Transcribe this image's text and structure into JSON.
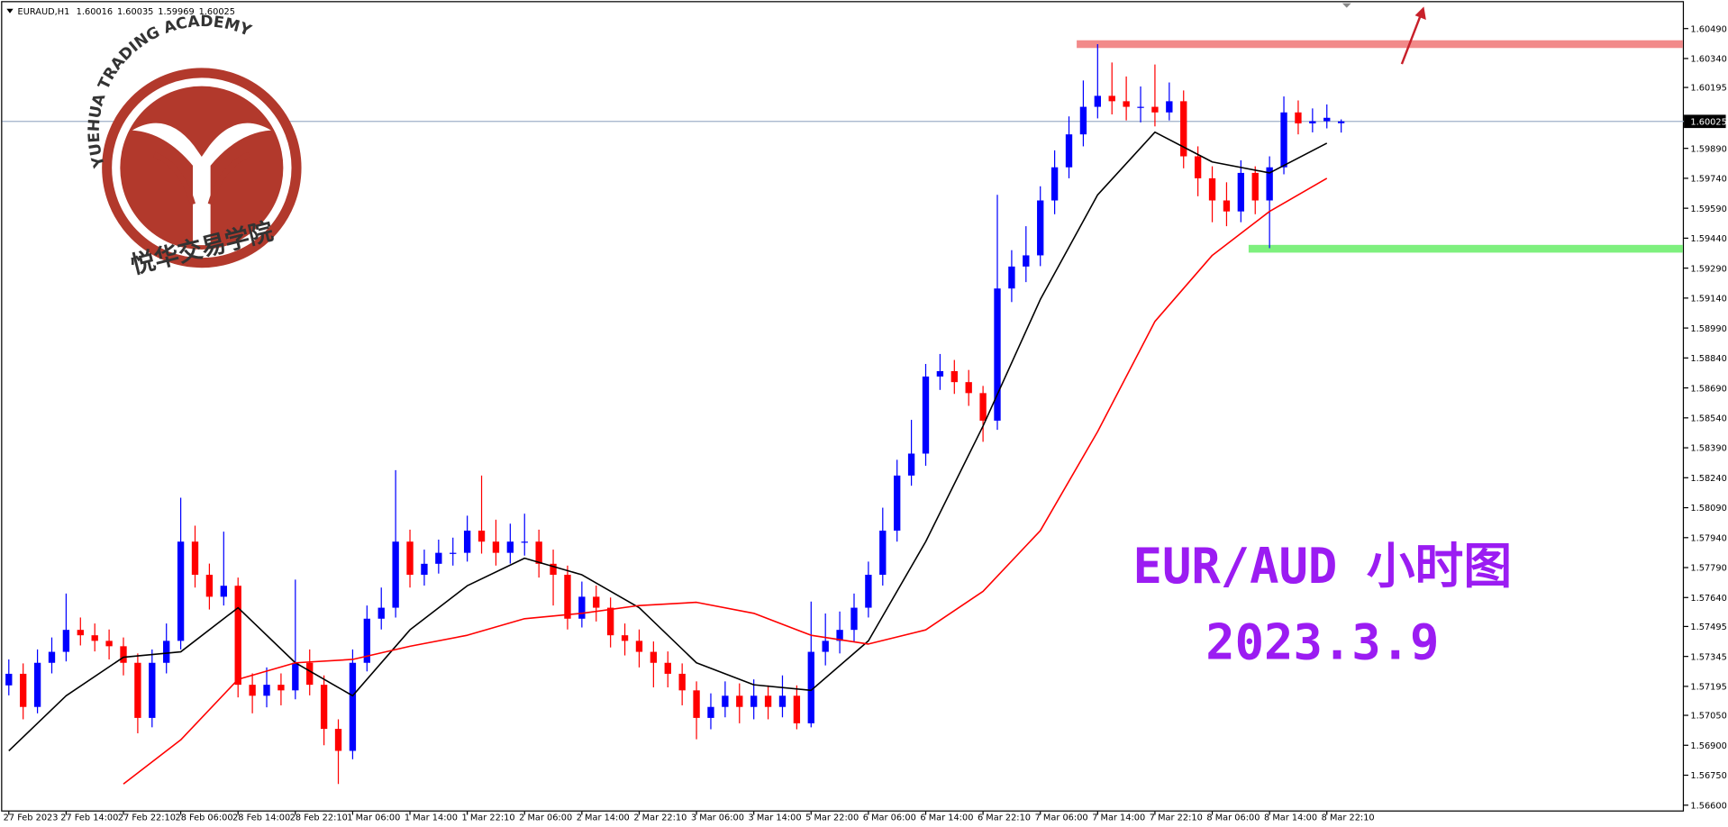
{
  "chart_data": {
    "type": "candlestick",
    "symbol": "EURAUD,H1",
    "ohlc": [
      1.60016,
      1.60035,
      1.59969,
      1.60025
    ],
    "annotation": "EUR/AUD 小时图",
    "date_note": "2023.3.9",
    "logo_text": "YUEHUA TRADING ACADEMY",
    "logo_cn": "悦华交易学院",
    "up_color": "#0000ff",
    "down_color": "#ff0000",
    "ylim": [
      1.56568,
      1.60622
    ],
    "yticks": [
      {
        "value": 1.6049,
        "label": "1.60490"
      },
      {
        "value": 1.6034,
        "label": "1.60340"
      },
      1.60195,
      {
        "value": 1.5989,
        "label": "1.59890"
      },
      {
        "value": 1.5974,
        "label": "1.59740"
      },
      {
        "value": 1.5959,
        "label": "1.59590"
      },
      {
        "value": 1.5944,
        "label": "1.59440"
      },
      {
        "value": 1.5929,
        "label": "1.59290"
      },
      {
        "value": 1.5914,
        "label": "1.59140"
      },
      {
        "value": 1.5899,
        "label": "1.58990"
      },
      {
        "value": 1.5884,
        "label": "1.58840"
      },
      {
        "value": 1.5869,
        "label": "1.58690"
      },
      {
        "value": 1.5854,
        "label": "1.58540"
      },
      {
        "value": 1.5839,
        "label": "1.58390"
      },
      {
        "value": 1.5824,
        "label": "1.58240"
      },
      {
        "value": 1.5809,
        "label": "1.58090"
      },
      {
        "value": 1.5794,
        "label": "1.57940"
      },
      {
        "value": 1.5779,
        "label": "1.57790"
      },
      {
        "value": 1.5764,
        "label": "1.57640"
      },
      1.57495,
      1.57345,
      1.57195,
      {
        "value": 1.5705,
        "label": "1.57050"
      },
      {
        "value": 1.569,
        "label": "1.56900"
      },
      {
        "value": 1.5675,
        "label": "1.56750"
      },
      {
        "value": 1.566,
        "label": "1.56600"
      }
    ],
    "last_price": 1.60025,
    "last_price_color": "#9fb0c8",
    "categories": [
      "27 Feb 2023",
      null,
      null,
      null,
      "27 Feb 14:00",
      null,
      null,
      null,
      "27 Feb 22:10",
      null,
      null,
      null,
      "28 Feb 06:00",
      null,
      null,
      null,
      "28 Feb 14:00",
      null,
      null,
      null,
      "28 Feb 22:10",
      null,
      null,
      null,
      "1 Mar 06:00",
      null,
      null,
      null,
      "1 Mar 14:00",
      null,
      null,
      null,
      "1 Mar 22:10",
      null,
      null,
      null,
      "2 Mar 06:00",
      null,
      null,
      null,
      "2 Mar 14:00",
      null,
      null,
      null,
      "2 Mar 22:10",
      null,
      null,
      null,
      "3 Mar 06:00",
      null,
      null,
      null,
      "3 Mar 14:00",
      null,
      null,
      null,
      "5 Mar 22:00",
      null,
      null,
      null,
      "6 Mar 06:00",
      null,
      null,
      null,
      "6 Mar 14:00",
      null,
      null,
      null,
      "6 Mar 22:10",
      null,
      null,
      null,
      "7 Mar 06:00",
      null,
      null,
      null,
      "7 Mar 14:00",
      null,
      null,
      null,
      "7 Mar 22:10",
      null,
      null,
      null,
      "8 Mar 06:00",
      null,
      null,
      null,
      "8 Mar 14:00",
      null,
      null,
      null,
      "8 Mar 22:10",
      null
    ],
    "open": [
      1.572,
      1.57258,
      1.57092,
      1.57313,
      1.57368,
      1.57478,
      1.57451,
      1.57423,
      1.57396,
      1.57313,
      1.57037,
      1.57313,
      1.57423,
      1.5792,
      1.57754,
      1.57644,
      1.57699,
      1.57203,
      1.57148,
      1.57203,
      1.57175,
      1.57313,
      1.57203,
      1.56982,
      1.56872,
      1.57313,
      1.57534,
      1.57589,
      1.5792,
      1.57754,
      1.57809,
      1.57864,
      1.57864,
      1.57975,
      1.5792,
      1.57864,
      1.5792,
      1.5792,
      1.57809,
      1.57754,
      1.57534,
      1.57644,
      1.57589,
      1.57451,
      1.57423,
      1.57368,
      1.57313,
      1.57258,
      1.57175,
      1.57037,
      1.57092,
      1.57148,
      1.57092,
      1.57148,
      1.57092,
      1.57148,
      1.5701,
      1.57368,
      1.57423,
      1.57478,
      1.57589,
      1.57754,
      1.57975,
      1.58251,
      1.58361,
      1.58747,
      1.58774,
      1.58719,
      1.58664,
      1.58526,
      1.59188,
      1.59298,
      1.59354,
      1.59629,
      1.59795,
      1.5996,
      1.60098,
      1.60153,
      1.60126,
      1.60098,
      1.60098,
      1.6007,
      1.60126,
      1.5985,
      1.5974,
      1.59629,
      1.59574,
      1.59767,
      1.59629,
      1.59795,
      1.6007,
      1.60015,
      1.60026,
      1.60016
    ],
    "high": [
      1.5733,
      1.5731,
      1.5738,
      1.5744,
      1.5766,
      1.5754,
      1.5751,
      1.5748,
      1.5744,
      1.5736,
      1.5738,
      1.5751,
      1.5814,
      1.58,
      1.5781,
      1.5797,
      1.5774,
      1.5726,
      1.5729,
      1.5726,
      1.5773,
      1.5738,
      1.5725,
      1.5703,
      1.5738,
      1.576,
      1.5769,
      1.58278,
      1.5798,
      1.5788,
      1.5793,
      1.5794,
      1.5805,
      1.58251,
      1.5803,
      1.5801,
      1.5806,
      1.5798,
      1.5788,
      1.578,
      1.5772,
      1.577,
      1.5764,
      1.5751,
      1.5748,
      1.5742,
      1.5737,
      1.5731,
      1.5722,
      1.5716,
      1.5722,
      1.5721,
      1.5723,
      1.572,
      1.5725,
      1.572,
      1.5762,
      1.5756,
      1.5757,
      1.5766,
      1.5782,
      1.5809,
      1.5833,
      1.5853,
      1.5881,
      1.5886,
      1.5883,
      1.5878,
      1.587,
      1.59657,
      1.5938,
      1.595,
      1.597,
      1.5988,
      1.6005,
      1.6023,
      1.60412,
      1.6032,
      1.6025,
      1.602,
      1.6031,
      1.6022,
      1.6018,
      1.599,
      1.598,
      1.5972,
      1.5983,
      1.598,
      1.5985,
      1.6015,
      1.6013,
      1.6009,
      1.6011,
      1.60035
    ],
    "low": [
      1.5715,
      1.5703,
      1.5706,
      1.5726,
      1.5732,
      1.574,
      1.5737,
      1.5733,
      1.5725,
      1.5696,
      1.5699,
      1.5726,
      1.5738,
      1.5769,
      1.5758,
      1.576,
      1.5714,
      1.5706,
      1.5709,
      1.571,
      1.5713,
      1.5715,
      1.569,
      1.56706,
      1.5683,
      1.5727,
      1.5748,
      1.5754,
      1.5769,
      1.577,
      1.5776,
      1.578,
      1.5782,
      1.5786,
      1.578,
      1.5781,
      1.5785,
      1.5774,
      1.576,
      1.5748,
      1.5749,
      1.5752,
      1.5739,
      1.5735,
      1.5729,
      1.5719,
      1.5719,
      1.571,
      1.5693,
      1.5698,
      1.5704,
      1.5701,
      1.5703,
      1.5703,
      1.5704,
      1.5698,
      1.5699,
      1.573,
      1.5736,
      1.5742,
      1.5754,
      1.577,
      1.5792,
      1.582,
      1.583,
      1.5868,
      1.5866,
      1.586,
      1.5842,
      1.5848,
      1.5912,
      1.5922,
      1.593,
      1.5956,
      1.5974,
      1.599,
      1.6004,
      1.6006,
      1.6003,
      1.6002,
      1.6,
      1.6003,
      1.5979,
      1.5965,
      1.5952,
      1.595,
      1.5952,
      1.5956,
      1.5939,
      1.5976,
      1.5996,
      1.5997,
      1.5999,
      1.59969
    ],
    "close": [
      1.57258,
      1.57092,
      1.57313,
      1.57368,
      1.57478,
      1.57451,
      1.57423,
      1.57396,
      1.57313,
      1.57037,
      1.57313,
      1.57423,
      1.5792,
      1.57754,
      1.57644,
      1.57699,
      1.57203,
      1.57148,
      1.57203,
      1.57175,
      1.57313,
      1.57203,
      1.56982,
      1.56872,
      1.57313,
      1.57534,
      1.57589,
      1.5792,
      1.57754,
      1.57809,
      1.57864,
      1.57864,
      1.57975,
      1.5792,
      1.57864,
      1.5792,
      1.5792,
      1.57809,
      1.57754,
      1.57534,
      1.57644,
      1.57589,
      1.57451,
      1.57423,
      1.57368,
      1.57313,
      1.57258,
      1.57175,
      1.57037,
      1.57092,
      1.57148,
      1.57092,
      1.57148,
      1.57092,
      1.57148,
      1.5701,
      1.57368,
      1.57423,
      1.57478,
      1.57589,
      1.57754,
      1.57975,
      1.58251,
      1.58361,
      1.58747,
      1.58774,
      1.58719,
      1.58664,
      1.58526,
      1.59188,
      1.59298,
      1.59354,
      1.59629,
      1.59795,
      1.5996,
      1.60098,
      1.60153,
      1.60126,
      1.60098,
      1.60098,
      1.6007,
      1.60126,
      1.5985,
      1.5974,
      1.59629,
      1.59574,
      1.59767,
      1.59629,
      1.59795,
      1.6007,
      1.60015,
      1.60026,
      1.60043,
      1.60025
    ],
    "lines": [
      {
        "color": "#000000",
        "x": [
          0,
          4,
          8,
          12,
          16,
          20,
          24,
          28,
          32,
          36,
          40,
          44,
          48,
          52,
          56,
          60,
          64,
          68,
          72,
          76,
          80,
          84,
          88,
          92
        ],
        "values": [
          1.56872,
          1.57148,
          1.57341,
          1.57368,
          1.57589,
          1.57313,
          1.57148,
          1.57478,
          1.57699,
          1.57837,
          1.57754,
          1.57589,
          1.57313,
          1.57203,
          1.57175,
          1.57423,
          1.5792,
          1.58499,
          1.59133,
          1.59657,
          1.59971,
          1.59822,
          1.59767,
          1.59916
        ]
      },
      {
        "color": "#ff0000",
        "x": [
          8,
          12,
          16,
          20,
          24,
          28,
          32,
          36,
          40,
          44,
          48,
          52,
          56,
          60,
          64,
          68,
          72,
          76,
          80,
          84,
          88,
          92
        ],
        "values": [
          1.56706,
          1.56927,
          1.5723,
          1.57313,
          1.5733,
          1.57396,
          1.57451,
          1.57534,
          1.57561,
          1.576,
          1.57616,
          1.57561,
          1.57451,
          1.57407,
          1.57478,
          1.57671,
          1.57975,
          1.58471,
          1.59023,
          1.59354,
          1.59574,
          1.5974
        ]
      }
    ],
    "levels": [
      {
        "value": 1.60412,
        "color": "#f28a8a",
        "from": 75
      },
      {
        "value": 1.59387,
        "color": "#7ef07e",
        "from": 87
      }
    ]
  }
}
